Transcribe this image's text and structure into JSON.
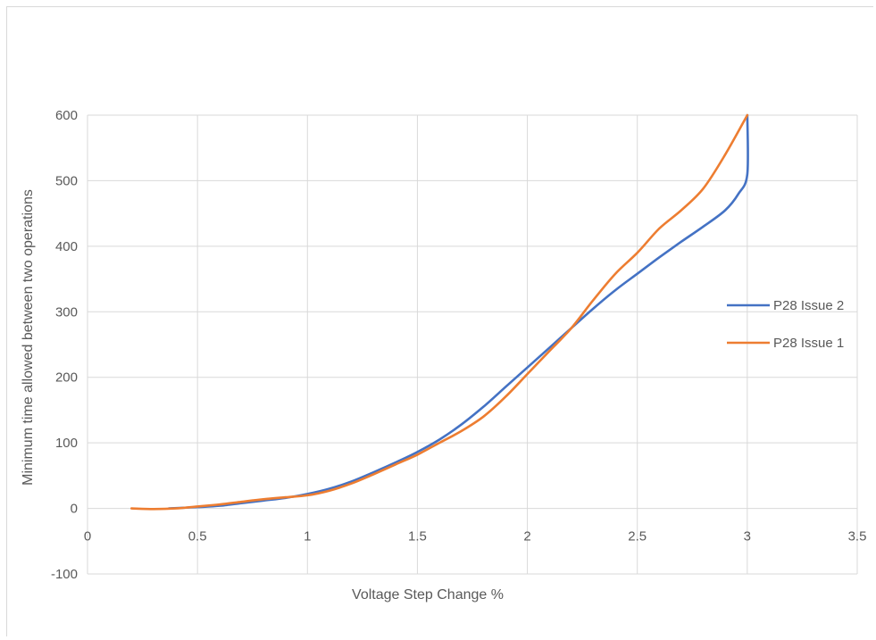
{
  "chart_data": {
    "type": "line",
    "title": "",
    "xlabel": "Voltage Step Change %",
    "ylabel": "Minimum time allowed  between two operations",
    "xlim": [
      0,
      3.5
    ],
    "ylim": [
      -100,
      600
    ],
    "x_ticks": [
      "0",
      "0.5",
      "1",
      "1.5",
      "2",
      "2.5",
      "3",
      "3.5"
    ],
    "y_ticks": [
      "-100",
      "0",
      "100",
      "200",
      "300",
      "400",
      "500",
      "600"
    ],
    "grid": true,
    "legend_position": "right",
    "series": [
      {
        "name": "P28 Issue 2",
        "color": "#4472c4",
        "points": [
          [
            0.37,
            0
          ],
          [
            0.5,
            2
          ],
          [
            0.6,
            4
          ],
          [
            0.7,
            8
          ],
          [
            0.8,
            12
          ],
          [
            0.9,
            16
          ],
          [
            1.0,
            22
          ],
          [
            1.1,
            30
          ],
          [
            1.2,
            41
          ],
          [
            1.3,
            55
          ],
          [
            1.4,
            70
          ],
          [
            1.5,
            86
          ],
          [
            1.6,
            105
          ],
          [
            1.7,
            128
          ],
          [
            1.8,
            155
          ],
          [
            1.9,
            185
          ],
          [
            2.0,
            215
          ],
          [
            2.1,
            245
          ],
          [
            2.2,
            275
          ],
          [
            2.3,
            305
          ],
          [
            2.4,
            333
          ],
          [
            2.5,
            358
          ],
          [
            2.6,
            383
          ],
          [
            2.7,
            407
          ],
          [
            2.8,
            430
          ],
          [
            2.9,
            455
          ],
          [
            2.96,
            480
          ],
          [
            3.0,
            510
          ],
          [
            3.0,
            600
          ]
        ]
      },
      {
        "name": "P28 Issue 1",
        "color": "#ed7d31",
        "points": [
          [
            0.2,
            0
          ],
          [
            0.3,
            -1
          ],
          [
            0.4,
            0
          ],
          [
            0.5,
            3
          ],
          [
            0.6,
            6
          ],
          [
            0.7,
            10
          ],
          [
            0.8,
            14
          ],
          [
            0.9,
            17
          ],
          [
            1.0,
            20
          ],
          [
            1.1,
            27
          ],
          [
            1.2,
            38
          ],
          [
            1.3,
            52
          ],
          [
            1.4,
            67
          ],
          [
            1.5,
            82
          ],
          [
            1.6,
            100
          ],
          [
            1.7,
            118
          ],
          [
            1.8,
            140
          ],
          [
            1.9,
            170
          ],
          [
            2.0,
            205
          ],
          [
            2.1,
            240
          ],
          [
            2.2,
            275
          ],
          [
            2.3,
            318
          ],
          [
            2.4,
            358
          ],
          [
            2.5,
            390
          ],
          [
            2.6,
            427
          ],
          [
            2.7,
            455
          ],
          [
            2.8,
            488
          ],
          [
            2.9,
            540
          ],
          [
            3.0,
            600
          ]
        ]
      }
    ]
  }
}
